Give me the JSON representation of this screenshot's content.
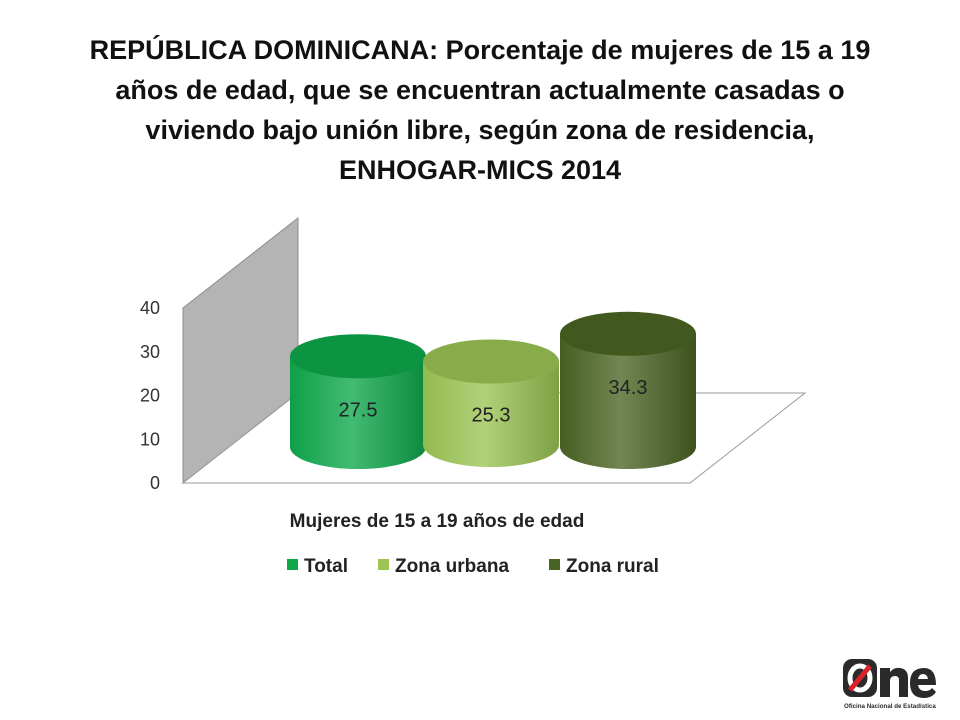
{
  "title": {
    "lines": [
      "REPÚBLICA DOMINICANA: Porcentaje de mujeres de 15 a 19",
      "años de edad, que se encuentran actualmente casadas o",
      "viviendo bajo unión libre, según zona de residencia,",
      "ENHOGAR-MICS 2014"
    ]
  },
  "chart_data": {
    "type": "bar",
    "variant": "3d-cylinder",
    "title": "REPÚBLICA DOMINICANA: Porcentaje de mujeres de 15 a 19 años de edad, que se encuentran actualmente casadas o viviendo bajo unión libre, según zona de residencia, ENHOGAR-MICS 2014",
    "categories": [
      "Mujeres de 15 a 19 años de edad"
    ],
    "xlabel": "Mujeres de 15 a 19 años de edad",
    "ylabel": "",
    "ylim": [
      0,
      40
    ],
    "yticks": [
      0,
      10,
      20,
      30,
      40
    ],
    "grid": false,
    "legend_position": "bottom",
    "series": [
      {
        "name": "Total",
        "values": [
          27.5
        ],
        "label": "27.5",
        "color": "#0ea84b"
      },
      {
        "name": "Zona urbana",
        "values": [
          25.3
        ],
        "label": "25.3",
        "color": "#9bc453"
      },
      {
        "name": "Zona rural",
        "values": [
          34.3
        ],
        "label": "34.3",
        "color": "#4a6423"
      }
    ]
  },
  "logo": {
    "brand": "One",
    "caption": "Oficina Nacional de Estadística",
    "colors": {
      "dark": "#2a2a2a",
      "red": "#d8232a"
    }
  }
}
